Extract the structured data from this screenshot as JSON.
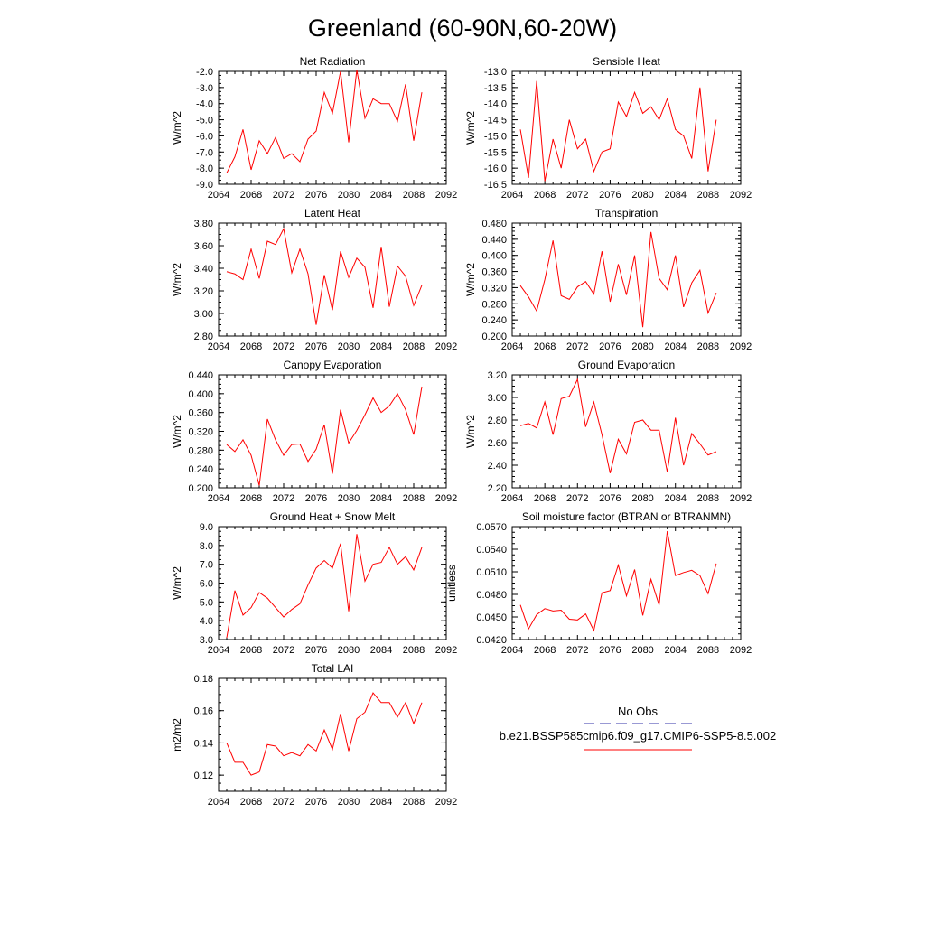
{
  "figure": {
    "title": "Greenland (60-90N,60-20W)"
  },
  "legend": {
    "obs_label": "No Obs",
    "obs_color": "#3333aa",
    "model_label": "b.e21.BSSP585cmip6.f09_g17.CMIP6-SSP5-8.5.002",
    "model_color": "#ff0000"
  },
  "chart_data": [
    {
      "type": "line",
      "title": "Net Radiation",
      "ylabel": "W/m^2",
      "xlim": [
        2064,
        2092
      ],
      "ylim": [
        -9.0,
        -2.0
      ],
      "xticks": [
        "2064",
        "2068",
        "2072",
        "2076",
        "2080",
        "2084",
        "2088",
        "2092"
      ],
      "yticks": [
        "-9.0",
        "-8.0",
        "-7.0",
        "-6.0",
        "-5.0",
        "-4.0",
        "-3.0",
        "-2.0"
      ],
      "x": [
        2065,
        2066,
        2067,
        2068,
        2069,
        2070,
        2071,
        2072,
        2073,
        2074,
        2075,
        2076,
        2077,
        2078,
        2079,
        2080,
        2081,
        2082,
        2083,
        2084,
        2085,
        2086,
        2087,
        2088,
        2089
      ],
      "values": [
        -8.3,
        -7.3,
        -5.6,
        -8.1,
        -6.3,
        -7.1,
        -6.1,
        -7.4,
        -7.1,
        -7.6,
        -6.2,
        -5.7,
        -3.3,
        -4.6,
        -2.0,
        -6.4,
        -1.9,
        -4.9,
        -3.7,
        -4.0,
        -4.0,
        -5.1,
        -2.8,
        -6.3,
        -3.3
      ],
      "color": "#ff0000"
    },
    {
      "type": "line",
      "title": "Sensible Heat",
      "ylabel": "W/m^2",
      "xlim": [
        2064,
        2092
      ],
      "ylim": [
        -16.5,
        -13.0
      ],
      "xticks": [
        "2064",
        "2068",
        "2072",
        "2076",
        "2080",
        "2084",
        "2088",
        "2092"
      ],
      "yticks": [
        "-16.5",
        "-16.0",
        "-15.5",
        "-15.0",
        "-14.5",
        "-14.0",
        "-13.5",
        "-13.0"
      ],
      "x": [
        2065,
        2066,
        2067,
        2068,
        2069,
        2070,
        2071,
        2072,
        2073,
        2074,
        2075,
        2076,
        2077,
        2078,
        2079,
        2080,
        2081,
        2082,
        2083,
        2084,
        2085,
        2086,
        2087,
        2088,
        2089
      ],
      "values": [
        -14.8,
        -16.3,
        -13.3,
        -16.4,
        -15.1,
        -16.0,
        -14.5,
        -15.4,
        -15.1,
        -16.1,
        -15.5,
        -15.4,
        -13.95,
        -14.4,
        -13.65,
        -14.3,
        -14.1,
        -14.5,
        -13.85,
        -14.8,
        -15.0,
        -15.7,
        -13.5,
        -16.1,
        -14.5
      ],
      "color": "#ff0000"
    },
    {
      "type": "line",
      "title": "Latent Heat",
      "ylabel": "W/m^2",
      "xlim": [
        2064,
        2092
      ],
      "ylim": [
        2.8,
        3.8
      ],
      "xticks": [
        "2064",
        "2068",
        "2072",
        "2076",
        "2080",
        "2084",
        "2088",
        "2092"
      ],
      "yticks": [
        "2.80",
        "3.00",
        "3.20",
        "3.40",
        "3.60",
        "3.80"
      ],
      "x": [
        2065,
        2066,
        2067,
        2068,
        2069,
        2070,
        2071,
        2072,
        2073,
        2074,
        2075,
        2076,
        2077,
        2078,
        2079,
        2080,
        2081,
        2082,
        2083,
        2084,
        2085,
        2086,
        2087,
        2088,
        2089
      ],
      "values": [
        3.37,
        3.35,
        3.3,
        3.57,
        3.31,
        3.64,
        3.61,
        3.75,
        3.36,
        3.57,
        3.35,
        2.9,
        3.34,
        3.03,
        3.55,
        3.32,
        3.49,
        3.41,
        3.05,
        3.59,
        3.06,
        3.42,
        3.33,
        3.07,
        3.25
      ],
      "color": "#ff0000"
    },
    {
      "type": "line",
      "title": "Transpiration",
      "ylabel": "W/m^2",
      "xlim": [
        2064,
        2092
      ],
      "ylim": [
        0.2,
        0.48
      ],
      "xticks": [
        "2064",
        "2068",
        "2072",
        "2076",
        "2080",
        "2084",
        "2088",
        "2092"
      ],
      "yticks": [
        "0.200",
        "0.240",
        "0.280",
        "0.320",
        "0.360",
        "0.400",
        "0.440",
        "0.480"
      ],
      "x": [
        2065,
        2066,
        2067,
        2068,
        2069,
        2070,
        2071,
        2072,
        2073,
        2074,
        2075,
        2076,
        2077,
        2078,
        2079,
        2080,
        2081,
        2082,
        2083,
        2084,
        2085,
        2086,
        2087,
        2088,
        2089
      ],
      "values": [
        0.325,
        0.297,
        0.262,
        0.34,
        0.437,
        0.3,
        0.291,
        0.322,
        0.335,
        0.304,
        0.41,
        0.285,
        0.378,
        0.302,
        0.4,
        0.222,
        0.458,
        0.343,
        0.315,
        0.4,
        0.272,
        0.332,
        0.363,
        0.257,
        0.307
      ],
      "color": "#ff0000"
    },
    {
      "type": "line",
      "title": "Canopy Evaporation",
      "ylabel": "W/m^2",
      "xlim": [
        2064,
        2092
      ],
      "ylim": [
        0.2,
        0.44
      ],
      "xticks": [
        "2064",
        "2068",
        "2072",
        "2076",
        "2080",
        "2084",
        "2088",
        "2092"
      ],
      "yticks": [
        "0.200",
        "0.240",
        "0.280",
        "0.320",
        "0.360",
        "0.400",
        "0.440"
      ],
      "x": [
        2065,
        2066,
        2067,
        2068,
        2069,
        2070,
        2071,
        2072,
        2073,
        2074,
        2075,
        2076,
        2077,
        2078,
        2079,
        2080,
        2081,
        2082,
        2083,
        2084,
        2085,
        2086,
        2087,
        2088,
        2089
      ],
      "values": [
        0.292,
        0.277,
        0.302,
        0.269,
        0.205,
        0.346,
        0.302,
        0.269,
        0.292,
        0.293,
        0.256,
        0.282,
        0.334,
        0.23,
        0.366,
        0.295,
        0.322,
        0.355,
        0.391,
        0.36,
        0.374,
        0.4,
        0.366,
        0.313,
        0.415
      ],
      "color": "#ff0000"
    },
    {
      "type": "line",
      "title": "Ground Evaporation",
      "ylabel": "W/m^2",
      "xlim": [
        2064,
        2092
      ],
      "ylim": [
        2.2,
        3.2
      ],
      "xticks": [
        "2064",
        "2068",
        "2072",
        "2076",
        "2080",
        "2084",
        "2088",
        "2092"
      ],
      "yticks": [
        "2.20",
        "2.40",
        "2.60",
        "2.80",
        "3.00",
        "3.20"
      ],
      "x": [
        2065,
        2066,
        2067,
        2068,
        2069,
        2070,
        2071,
        2072,
        2073,
        2074,
        2075,
        2076,
        2077,
        2078,
        2079,
        2080,
        2081,
        2082,
        2083,
        2084,
        2085,
        2086,
        2087,
        2088,
        2089
      ],
      "values": [
        2.75,
        2.77,
        2.73,
        2.96,
        2.67,
        2.99,
        3.01,
        3.16,
        2.74,
        2.96,
        2.67,
        2.33,
        2.63,
        2.5,
        2.78,
        2.8,
        2.71,
        2.71,
        2.34,
        2.82,
        2.4,
        2.68,
        2.59,
        2.49,
        2.52
      ],
      "color": "#ff0000"
    },
    {
      "type": "line",
      "title": "Ground Heat + Snow Melt",
      "ylabel": "W/m^2",
      "xlim": [
        2064,
        2092
      ],
      "ylim": [
        3.0,
        9.0
      ],
      "xticks": [
        "2064",
        "2068",
        "2072",
        "2076",
        "2080",
        "2084",
        "2088",
        "2092"
      ],
      "yticks": [
        "3.0",
        "4.0",
        "5.0",
        "6.0",
        "7.0",
        "8.0",
        "9.0"
      ],
      "x": [
        2065,
        2066,
        2067,
        2068,
        2069,
        2070,
        2071,
        2072,
        2073,
        2074,
        2075,
        2076,
        2077,
        2078,
        2079,
        2080,
        2081,
        2082,
        2083,
        2084,
        2085,
        2086,
        2087,
        2088,
        2089
      ],
      "values": [
        3.1,
        5.6,
        4.3,
        4.7,
        5.5,
        5.2,
        4.7,
        4.2,
        4.6,
        4.9,
        5.9,
        6.8,
        7.2,
        6.8,
        8.1,
        4.5,
        8.6,
        6.1,
        7.0,
        7.1,
        7.9,
        7.0,
        7.4,
        6.7,
        7.9
      ],
      "color": "#ff0000"
    },
    {
      "type": "line",
      "title": "Soil moisture factor (BTRAN or BTRANMN)",
      "ylabel": "unitless",
      "xlim": [
        2064,
        2092
      ],
      "ylim": [
        0.042,
        0.057
      ],
      "xticks": [
        "2064",
        "2068",
        "2072",
        "2076",
        "2080",
        "2084",
        "2088",
        "2092"
      ],
      "yticks": [
        "0.0420",
        "0.0450",
        "0.0480",
        "0.0510",
        "0.0540",
        "0.0570"
      ],
      "x": [
        2065,
        2066,
        2067,
        2068,
        2069,
        2070,
        2071,
        2072,
        2073,
        2074,
        2075,
        2076,
        2077,
        2078,
        2079,
        2080,
        2081,
        2082,
        2083,
        2084,
        2085,
        2086,
        2087,
        2088,
        2089
      ],
      "values": [
        0.0466,
        0.0434,
        0.0453,
        0.0461,
        0.0458,
        0.0459,
        0.0447,
        0.0446,
        0.0454,
        0.0432,
        0.0482,
        0.0485,
        0.0519,
        0.0478,
        0.0513,
        0.0452,
        0.05,
        0.0466,
        0.0564,
        0.0505,
        0.0509,
        0.0512,
        0.0505,
        0.0481,
        0.0521
      ],
      "color": "#ff0000"
    },
    {
      "type": "line",
      "title": "Total LAI",
      "ylabel": "m2/m2",
      "xlim": [
        2064,
        2092
      ],
      "ylim": [
        0.11,
        0.18
      ],
      "xticks": [
        "2064",
        "2068",
        "2072",
        "2076",
        "2080",
        "2084",
        "2088",
        "2092"
      ],
      "yticks": [
        "0.12",
        "0.14",
        "0.16",
        "0.18"
      ],
      "x": [
        2065,
        2066,
        2067,
        2068,
        2069,
        2070,
        2071,
        2072,
        2073,
        2074,
        2075,
        2076,
        2077,
        2078,
        2079,
        2080,
        2081,
        2082,
        2083,
        2084,
        2085,
        2086,
        2087,
        2088,
        2089
      ],
      "values": [
        0.14,
        0.128,
        0.128,
        0.12,
        0.122,
        0.139,
        0.138,
        0.132,
        0.134,
        0.132,
        0.139,
        0.135,
        0.148,
        0.136,
        0.158,
        0.135,
        0.155,
        0.159,
        0.171,
        0.165,
        0.165,
        0.156,
        0.165,
        0.152,
        0.165
      ],
      "color": "#ff0000"
    }
  ]
}
